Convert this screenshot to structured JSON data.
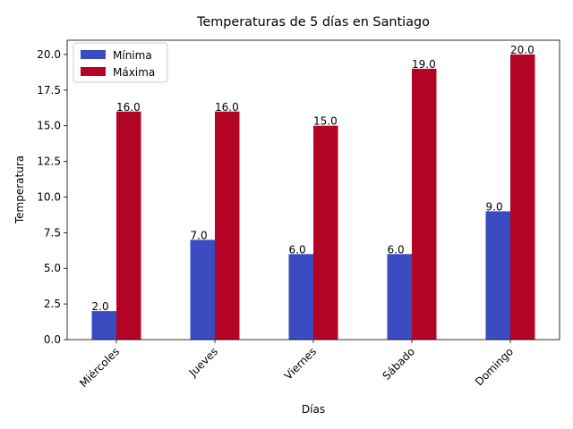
{
  "chart_data": {
    "type": "bar",
    "title": "Temperaturas de 5 días en Santiago",
    "xlabel": "Días",
    "ylabel": "Temperatura",
    "categories": [
      "Miércoles",
      "Jueves",
      "Viernes",
      "Sábado",
      "Domingo"
    ],
    "series": [
      {
        "name": "Mínima",
        "values": [
          2.0,
          7.0,
          6.0,
          6.0,
          9.0
        ],
        "color": "#3b4cc0",
        "labels": [
          "2.0",
          "7.0",
          "6.0",
          "6.0",
          "9.0"
        ]
      },
      {
        "name": "Máxima",
        "values": [
          16.0,
          16.0,
          15.0,
          19.0,
          20.0
        ],
        "color": "#b40426",
        "labels": [
          "16.0",
          "16.0",
          "15.0",
          "19.0",
          "20.0"
        ]
      }
    ],
    "ylim": [
      0,
      21
    ],
    "yticks": [
      0.0,
      2.5,
      5.0,
      7.5,
      10.0,
      12.5,
      15.0,
      17.5,
      20.0
    ],
    "ytick_labels": [
      "0.0",
      "2.5",
      "5.0",
      "7.5",
      "10.0",
      "12.5",
      "15.0",
      "17.5",
      "20.0"
    ],
    "xtick_rotation": 45,
    "grid": false,
    "legend_position": "top-left"
  }
}
